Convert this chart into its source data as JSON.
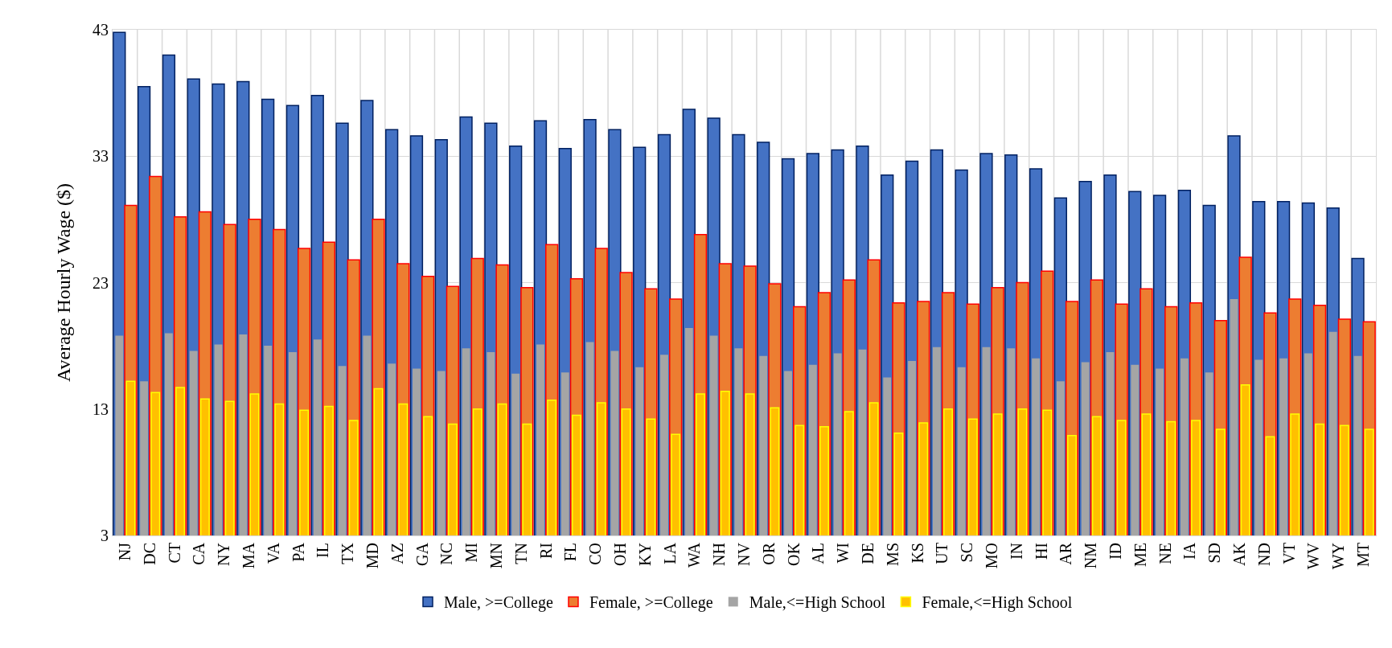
{
  "chart_data": {
    "type": "bar",
    "ylabel": "Average Hourly Wage ($)",
    "categories": [
      "NJ",
      "DC",
      "CT",
      "CA",
      "NY",
      "MA",
      "VA",
      "PA",
      "IL",
      "TX",
      "MD",
      "AZ",
      "GA",
      "NC",
      "MI",
      "MN",
      "TN",
      "RI",
      "FL",
      "CO",
      "OH",
      "KY",
      "LA",
      "WA",
      "NH",
      "NV",
      "OR",
      "OK",
      "AL",
      "WI",
      "DE",
      "MS",
      "KS",
      "UT",
      "SC",
      "MO",
      "IN",
      "HI",
      "AR",
      "NM",
      "ID",
      "ME",
      "NE",
      "IA",
      "SD",
      "AK",
      "ND",
      "VT",
      "WV",
      "WY",
      "MT"
    ],
    "series": [
      {
        "name": "Male, >=College",
        "color": "#4472c4",
        "values": [
          42.8,
          38.5,
          41.0,
          39.1,
          38.7,
          38.9,
          37.5,
          37.0,
          37.8,
          35.6,
          37.4,
          35.1,
          34.6,
          34.3,
          36.1,
          35.6,
          33.8,
          35.8,
          33.6,
          35.9,
          35.1,
          33.7,
          34.7,
          36.7,
          36.0,
          34.7,
          34.1,
          32.8,
          33.2,
          33.5,
          33.8,
          31.5,
          32.6,
          33.5,
          31.9,
          33.2,
          33.1,
          32.0,
          29.7,
          31.0,
          31.5,
          30.2,
          29.9,
          30.3,
          29.1,
          34.6,
          29.4,
          29.4,
          29.3,
          28.9,
          24.9
        ]
      },
      {
        "name": "Female, >=College",
        "color": "#ed7d31",
        "values": [
          29.1,
          31.4,
          28.2,
          28.6,
          27.6,
          28.0,
          27.2,
          25.7,
          26.2,
          24.8,
          28.0,
          24.5,
          23.5,
          22.7,
          24.9,
          24.4,
          22.6,
          26.0,
          23.3,
          25.7,
          23.8,
          22.5,
          21.7,
          26.8,
          24.5,
          24.3,
          22.9,
          21.1,
          22.2,
          23.2,
          24.8,
          21.4,
          21.5,
          22.2,
          21.3,
          22.6,
          23.0,
          23.9,
          21.5,
          23.2,
          21.3,
          22.5,
          21.1,
          21.4,
          20.0,
          25.0,
          20.6,
          21.7,
          21.2,
          20.1,
          19.9
        ]
      },
      {
        "name": "Male,<=High School",
        "color": "#a5a5a5",
        "values": [
          18.8,
          15.2,
          19.0,
          17.6,
          18.1,
          18.9,
          18.0,
          17.5,
          18.5,
          16.4,
          18.8,
          16.6,
          16.2,
          16.0,
          17.8,
          17.5,
          15.8,
          18.1,
          15.9,
          18.3,
          17.6,
          16.3,
          17.3,
          19.4,
          18.8,
          17.8,
          17.2,
          16.0,
          16.5,
          17.4,
          17.7,
          15.5,
          16.8,
          17.9,
          16.3,
          17.9,
          17.8,
          17.0,
          15.2,
          16.7,
          17.5,
          16.5,
          16.2,
          17.0,
          15.9,
          21.7,
          16.9,
          17.0,
          17.4,
          19.1,
          17.2
        ]
      },
      {
        "name": "Female,<=High School",
        "color": "#ffc000",
        "values": [
          15.2,
          14.3,
          14.7,
          13.8,
          13.6,
          14.2,
          13.4,
          12.9,
          13.2,
          12.1,
          14.6,
          13.4,
          12.4,
          11.8,
          13.0,
          13.4,
          11.8,
          13.7,
          12.5,
          13.5,
          13.0,
          12.2,
          11.0,
          14.2,
          14.4,
          14.2,
          13.1,
          11.7,
          11.6,
          12.8,
          13.5,
          11.1,
          11.9,
          13.0,
          12.2,
          12.6,
          13.0,
          12.9,
          10.9,
          12.4,
          12.1,
          12.6,
          12.0,
          12.1,
          11.4,
          14.9,
          10.8,
          12.6,
          11.8,
          11.7,
          11.4
        ]
      }
    ],
    "ylim": [
      3,
      43
    ],
    "yticks": [
      3,
      13,
      23,
      33,
      43
    ],
    "grid": true,
    "legend": "bottom"
  }
}
